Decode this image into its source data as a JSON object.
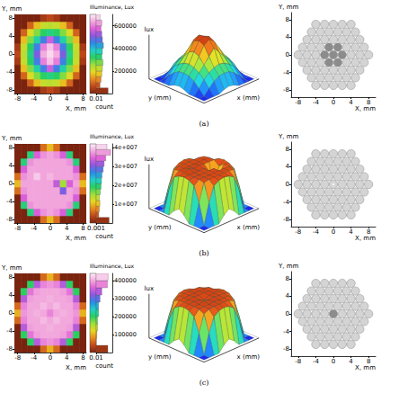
{
  "chart_data": [
    {
      "type": "heatmap",
      "annotation": "(a)",
      "x_label": "X, mm",
      "y_label": "Y, mm",
      "xlim": [
        -8.8,
        8.8
      ],
      "ylim": [
        -8.8,
        8.8
      ],
      "xticks": [
        -8,
        -4,
        0,
        4,
        8
      ],
      "yticks": [
        -8,
        -4,
        0,
        4,
        8
      ],
      "x": [
        -8,
        -6.4,
        -4.8,
        -3.2,
        -1.6,
        0,
        1.6,
        3.2,
        4.8,
        6.4,
        8
      ],
      "y": [
        -8,
        -6.4,
        -4.8,
        -3.2,
        -1.6,
        0,
        1.6,
        3.2,
        4.8,
        6.4,
        8
      ],
      "cells": [
        [
          0,
          0,
          0,
          0,
          40000,
          60000,
          40000,
          0,
          0,
          0,
          0
        ],
        [
          0,
          0,
          90000,
          170000,
          220000,
          230000,
          220000,
          170000,
          90000,
          0,
          0
        ],
        [
          0,
          90000,
          200000,
          270000,
          320000,
          340000,
          320000,
          270000,
          200000,
          90000,
          0
        ],
        [
          0,
          170000,
          270000,
          360000,
          460000,
          560000,
          460000,
          360000,
          270000,
          170000,
          0
        ],
        [
          40000,
          220000,
          320000,
          460000,
          600000,
          660000,
          600000,
          460000,
          320000,
          220000,
          40000
        ],
        [
          60000,
          230000,
          340000,
          500000,
          640000,
          680000,
          640000,
          500000,
          340000,
          230000,
          60000
        ],
        [
          40000,
          220000,
          320000,
          460000,
          600000,
          660000,
          600000,
          460000,
          320000,
          220000,
          40000
        ],
        [
          0,
          170000,
          270000,
          360000,
          460000,
          560000,
          460000,
          360000,
          270000,
          170000,
          0
        ],
        [
          0,
          90000,
          200000,
          270000,
          320000,
          340000,
          320000,
          270000,
          200000,
          90000,
          0
        ],
        [
          0,
          0,
          90000,
          170000,
          220000,
          230000,
          220000,
          170000,
          90000,
          0,
          0
        ],
        [
          0,
          0,
          0,
          0,
          40000,
          60000,
          40000,
          0,
          0,
          0,
          0
        ]
      ],
      "colorbar": {
        "title": "Illuminance, Lux",
        "range": [
          0,
          700000
        ],
        "ticks": [
          200000,
          400000,
          600000
        ],
        "histogram": {
          "x_label": "count",
          "log": "x",
          "xlim": [
            0.01,
            1
          ],
          "xticks": [
            0.01
          ],
          "bins": [
            0,
            50000,
            100000,
            150000,
            200000,
            250000,
            300000,
            350000,
            400000,
            450000,
            500000,
            550000,
            600000,
            650000,
            700000
          ],
          "counts": [
            0.3,
            0.03,
            0.04,
            0.05,
            0.06,
            0.07,
            0.05,
            0.06,
            0.08,
            0.06,
            0.05,
            0.04,
            0.05,
            0.03
          ]
        }
      },
      "surface": {
        "type": "surface",
        "x_label": "x (mm)",
        "y_label": "y (mm)",
        "z_label": "lux",
        "tick_labels": false
      },
      "layout": {
        "type": "fiber_layout",
        "x_label": "X, mm",
        "y_label": "Y, mm",
        "xlim": [
          -9.6,
          9.6
        ],
        "ylim": [
          -9.6,
          9.6
        ],
        "xticks": [
          -8,
          -4,
          0,
          4,
          8
        ],
        "yticks": [
          -8,
          -4,
          0,
          4,
          8
        ],
        "rows": [
          5,
          6,
          7,
          8,
          9,
          8,
          7,
          6,
          5
        ],
        "pitch": 2,
        "dark_fibers": [
          [
            4,
            4
          ],
          [
            4,
            3
          ],
          [
            4,
            5
          ],
          [
            3,
            3
          ],
          [
            3,
            4
          ],
          [
            5,
            3
          ],
          [
            5,
            4
          ]
        ]
      }
    },
    {
      "type": "heatmap",
      "annotation": "(b)",
      "x_label": "X, mm",
      "y_label": "Y, mm",
      "xlim": [
        -8.8,
        8.8
      ],
      "ylim": [
        -8.8,
        8.8
      ],
      "xticks": [
        -8,
        -4,
        0,
        4,
        8
      ],
      "yticks": [
        -8,
        -4,
        0,
        4,
        8
      ],
      "x": [
        -8,
        -6.4,
        -4.8,
        -3.2,
        -1.6,
        0,
        1.6,
        3.2,
        4.8,
        6.4,
        8
      ],
      "y": [
        -8,
        -6.4,
        -4.8,
        -3.2,
        -1.6,
        0,
        1.6,
        3.2,
        4.8,
        6.4,
        8
      ],
      "cells": [
        [
          0,
          0,
          0,
          0,
          6000000,
          10000000,
          6000000,
          0,
          0,
          0,
          0
        ],
        [
          0,
          0,
          20000000,
          34000000,
          37000000,
          38000000,
          37000000,
          34000000,
          20000000,
          0,
          0
        ],
        [
          0,
          20000000,
          37000000,
          38000000,
          38000000,
          38000000,
          38000000,
          38000000,
          37000000,
          20000000,
          0
        ],
        [
          0,
          34000000,
          38000000,
          38000000,
          38000000,
          38000000,
          38000000,
          38000000,
          38000000,
          34000000,
          0
        ],
        [
          6000000,
          37000000,
          38000000,
          38000000,
          38000000,
          38000000,
          38000000,
          30000000,
          38000000,
          37000000,
          6000000
        ],
        [
          10000000,
          38000000,
          38000000,
          38000000,
          38000000,
          38000000,
          33000000,
          15000000,
          34000000,
          38000000,
          10000000
        ],
        [
          6000000,
          37000000,
          38000000,
          40000000,
          38000000,
          39000000,
          38000000,
          38000000,
          38000000,
          37000000,
          6000000
        ],
        [
          0,
          34000000,
          38000000,
          38000000,
          38000000,
          38000000,
          38000000,
          38000000,
          38000000,
          34000000,
          0
        ],
        [
          0,
          20000000,
          37000000,
          38000000,
          38000000,
          38000000,
          38000000,
          38000000,
          37000000,
          20000000,
          0
        ],
        [
          0,
          0,
          20000000,
          34000000,
          37000000,
          38000000,
          37000000,
          34000000,
          20000000,
          0,
          0
        ],
        [
          0,
          0,
          0,
          0,
          6000000,
          10000000,
          6000000,
          0,
          0,
          0,
          0
        ]
      ],
      "colorbar": {
        "title": "Illuminance, Lux",
        "range": [
          0,
          42000000
        ],
        "ticks": [
          {
            "value": 10000000,
            "label": "1e+007"
          },
          {
            "value": 20000000,
            "label": "2e+007"
          },
          {
            "value": 30000000,
            "label": "3e+007"
          },
          {
            "value": 40000000,
            "label": "4e+007"
          }
        ],
        "histogram": {
          "x_label": "count",
          "log": "x",
          "xlim": [
            0.001,
            1
          ],
          "xticks": [
            0.001
          ],
          "bins": [
            0,
            3000000,
            6000000,
            9000000,
            12000000,
            15000000,
            18000000,
            21000000,
            24000000,
            27000000,
            30000000,
            33000000,
            36000000,
            39000000,
            42000000
          ],
          "counts": [
            0.25,
            0.003,
            0.004,
            0.005,
            0.004,
            0.006,
            0.008,
            0.01,
            0.012,
            0.02,
            0.03,
            0.06,
            0.5,
            0.1
          ]
        }
      },
      "surface": {
        "type": "surface",
        "x_label": "x (mm)",
        "y_label": "y (mm)",
        "z_label": "lux",
        "tick_labels": false
      },
      "layout": {
        "type": "fiber_layout",
        "x_label": "X, mm",
        "y_label": "Y, mm",
        "xlim": [
          -9.6,
          9.6
        ],
        "ylim": [
          -9.6,
          9.6
        ],
        "xticks": [
          -8,
          -4,
          0,
          4,
          8
        ],
        "yticks": [
          -8,
          -4,
          0,
          4,
          8
        ],
        "rows": [
          5,
          6,
          7,
          8,
          9,
          8,
          7,
          6,
          5
        ],
        "pitch": 2,
        "white_fibers": [
          [
            4,
            4
          ]
        ]
      }
    },
    {
      "type": "heatmap",
      "annotation": "(c)",
      "x_label": "X, mm",
      "y_label": "Y, mm",
      "xlim": [
        -8.8,
        8.8
      ],
      "ylim": [
        -8.8,
        8.8
      ],
      "xticks": [
        -8,
        -4,
        0,
        4,
        8
      ],
      "yticks": [
        -8,
        -4,
        0,
        4,
        8
      ],
      "x": [
        -8,
        -6.4,
        -4.8,
        -3.2,
        -1.6,
        0,
        1.6,
        3.2,
        4.8,
        6.4,
        8
      ],
      "y": [
        -8,
        -6.4,
        -4.8,
        -3.2,
        -1.6,
        0,
        1.6,
        3.2,
        4.8,
        6.4,
        8
      ],
      "cells": [
        [
          0,
          0,
          0,
          0,
          60000,
          100000,
          60000,
          0,
          0,
          0,
          0
        ],
        [
          0,
          0,
          200000,
          340000,
          380000,
          390000,
          380000,
          340000,
          200000,
          0,
          0
        ],
        [
          0,
          200000,
          370000,
          395000,
          400000,
          400000,
          400000,
          395000,
          370000,
          200000,
          0
        ],
        [
          0,
          340000,
          395000,
          400000,
          400000,
          405000,
          400000,
          400000,
          395000,
          340000,
          0
        ],
        [
          60000,
          380000,
          400000,
          400000,
          410000,
          400000,
          410000,
          400000,
          400000,
          380000,
          60000
        ],
        [
          100000,
          390000,
          400000,
          405000,
          400000,
          380000,
          400000,
          405000,
          400000,
          390000,
          100000
        ],
        [
          60000,
          380000,
          400000,
          400000,
          410000,
          400000,
          410000,
          400000,
          400000,
          380000,
          60000
        ],
        [
          0,
          340000,
          395000,
          400000,
          400000,
          405000,
          400000,
          400000,
          395000,
          340000,
          0
        ],
        [
          0,
          200000,
          370000,
          395000,
          400000,
          400000,
          400000,
          395000,
          370000,
          200000,
          0
        ],
        [
          0,
          0,
          200000,
          340000,
          380000,
          390000,
          380000,
          340000,
          200000,
          0,
          0
        ],
        [
          0,
          0,
          0,
          0,
          60000,
          100000,
          60000,
          0,
          0,
          0,
          0
        ]
      ],
      "colorbar": {
        "title": "Illuminance, Lux",
        "range": [
          0,
          440000
        ],
        "ticks": [
          100000,
          200000,
          300000,
          400000
        ],
        "histogram": {
          "x_label": "count",
          "log": "x",
          "xlim": [
            0.01,
            1
          ],
          "xticks": [
            0.01
          ],
          "bins": [
            0,
            40000,
            80000,
            120000,
            160000,
            200000,
            240000,
            280000,
            320000,
            360000,
            400000,
            440000
          ],
          "counts": [
            0.28,
            0.01,
            0.012,
            0.015,
            0.015,
            0.02,
            0.02,
            0.03,
            0.05,
            0.25,
            0.3
          ]
        }
      },
      "surface": {
        "type": "surface",
        "x_label": "x (mm)",
        "y_label": "y (mm)",
        "z_label": "lux",
        "tick_labels": false
      },
      "layout": {
        "type": "fiber_layout",
        "x_label": "X, mm",
        "y_label": "Y, mm",
        "xlim": [
          -9.6,
          9.6
        ],
        "ylim": [
          -9.6,
          9.6
        ],
        "xticks": [
          -8,
          -4,
          0,
          4,
          8
        ],
        "yticks": [
          -8,
          -4,
          0,
          4,
          8
        ],
        "rows": [
          5,
          6,
          7,
          8,
          9,
          8,
          7,
          6,
          5
        ],
        "pitch": 2,
        "dark_fibers": [
          [
            4,
            4
          ]
        ]
      }
    }
  ]
}
